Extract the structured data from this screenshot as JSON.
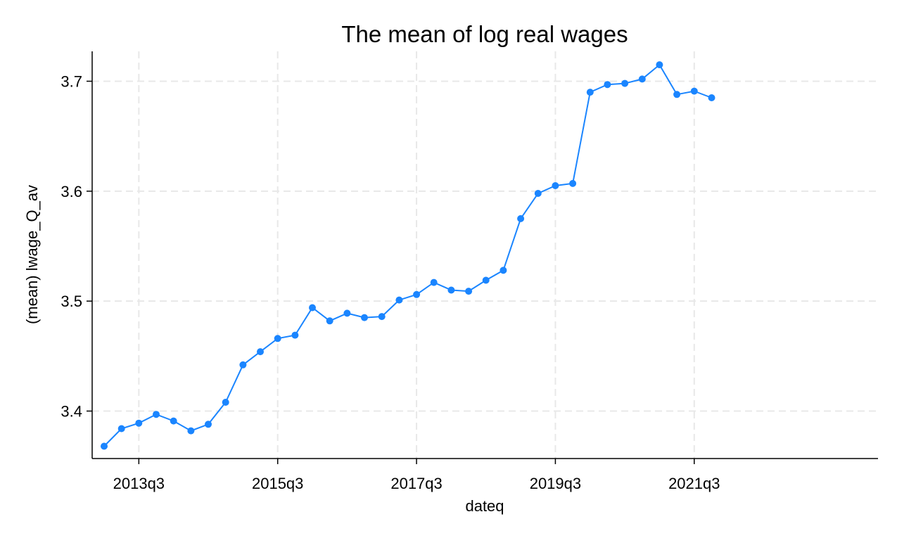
{
  "chart_data": {
    "type": "line",
    "title": "The mean of log real wages",
    "xlabel": "dateq",
    "ylabel": "(mean) lwage_Q_av",
    "x": [
      "2013q1",
      "2013q2",
      "2013q3",
      "2013q4",
      "2014q1",
      "2014q2",
      "2014q3",
      "2014q4",
      "2015q1",
      "2015q2",
      "2015q3",
      "2015q4",
      "2016q1",
      "2016q2",
      "2016q3",
      "2016q4",
      "2017q1",
      "2017q2",
      "2017q3",
      "2017q4",
      "2018q1",
      "2018q2",
      "2018q3",
      "2018q4",
      "2019q1",
      "2019q2",
      "2019q3",
      "2019q4",
      "2020q1",
      "2020q2",
      "2020q3",
      "2020q4",
      "2021q1",
      "2021q2",
      "2021q3",
      "2021q4"
    ],
    "series": [
      {
        "values": [
          3.368,
          3.384,
          3.389,
          3.397,
          3.391,
          3.382,
          3.388,
          3.408,
          3.442,
          3.454,
          3.466,
          3.469,
          3.494,
          3.482,
          3.489,
          3.485,
          3.486,
          3.501,
          3.506,
          3.517,
          3.51,
          3.509,
          3.519,
          3.528,
          3.575,
          3.598,
          3.605,
          3.607,
          3.69,
          3.697,
          3.698,
          3.702,
          3.715,
          3.688,
          3.691,
          3.685
        ]
      }
    ],
    "x_ticks": [
      "2013q3",
      "2015q3",
      "2017q3",
      "2019q3",
      "2021q3"
    ],
    "y_ticks": [
      "3.4",
      "3.5",
      "3.6",
      "3.7"
    ],
    "ylim": [
      3.36,
      3.72
    ],
    "grid": true,
    "line_color": "#1a85ff",
    "grid_color": "#e8e8e8"
  }
}
